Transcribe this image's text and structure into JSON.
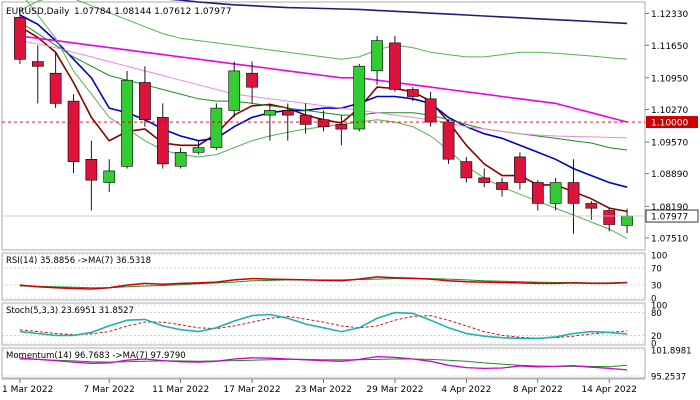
{
  "header": {
    "symbol": "EURUSD,Daily",
    "ohlc": "1.07784 1.08144 1.07612 1.07977"
  },
  "chart_data": {
    "type": "candlestick",
    "symbol": "EURUSD",
    "timeframe": "Daily",
    "price_axis": {
      "ticks": [
        "1.12330",
        "1.11650",
        "1.10950",
        "1.10270",
        "1.09570",
        "1.08890",
        "1.08190",
        "1.07510"
      ],
      "range": [
        1.0725,
        1.1258
      ]
    },
    "date_labels": [
      "1 Mar 2022",
      "7 Mar 2022",
      "11 Mar 2022",
      "17 Mar 2022",
      "23 Mar 2022",
      "29 Mar 2022",
      "4 Apr 2022",
      "8 Apr 2022",
      "14 Apr 2022"
    ],
    "label_indices": [
      0,
      5,
      9,
      13,
      17,
      21,
      25,
      29,
      33
    ],
    "candles": [
      {
        "o": 1.1225,
        "h": 1.124,
        "l": 1.1125,
        "c": 1.1135
      },
      {
        "o": 1.113,
        "h": 1.1165,
        "l": 1.104,
        "c": 1.112
      },
      {
        "o": 1.1105,
        "h": 1.115,
        "l": 1.103,
        "c": 1.104
      },
      {
        "o": 1.1045,
        "h": 1.106,
        "l": 1.089,
        "c": 1.0915
      },
      {
        "o": 1.092,
        "h": 1.096,
        "l": 1.081,
        "c": 1.0875
      },
      {
        "o": 1.087,
        "h": 1.092,
        "l": 1.085,
        "c": 1.0895
      },
      {
        "o": 1.0905,
        "h": 1.111,
        "l": 1.09,
        "c": 1.109
      },
      {
        "o": 1.1085,
        "h": 1.112,
        "l": 1.099,
        "c": 1.1005
      },
      {
        "o": 1.101,
        "h": 1.104,
        "l": 1.09,
        "c": 1.091
      },
      {
        "o": 1.0905,
        "h": 1.0945,
        "l": 1.09,
        "c": 1.0935
      },
      {
        "o": 1.0935,
        "h": 1.096,
        "l": 1.093,
        "c": 1.0945
      },
      {
        "o": 1.0945,
        "h": 1.104,
        "l": 1.094,
        "c": 1.103
      },
      {
        "o": 1.1025,
        "h": 1.113,
        "l": 1.101,
        "c": 1.111
      },
      {
        "o": 1.1105,
        "h": 1.113,
        "l": 1.104,
        "c": 1.1075
      },
      {
        "o": 1.1015,
        "h": 1.104,
        "l": 1.096,
        "c": 1.1025
      },
      {
        "o": 1.1025,
        "h": 1.104,
        "l": 1.096,
        "c": 1.1015
      },
      {
        "o": 1.1015,
        "h": 1.104,
        "l": 1.0975,
        "c": 1.0995
      },
      {
        "o": 1.1005,
        "h": 1.1025,
        "l": 1.098,
        "c": 1.099
      },
      {
        "o": 1.0995,
        "h": 1.1015,
        "l": 1.095,
        "c": 1.0985
      },
      {
        "o": 1.0985,
        "h": 1.1125,
        "l": 1.098,
        "c": 1.112
      },
      {
        "o": 1.111,
        "h": 1.1185,
        "l": 1.108,
        "c": 1.1175
      },
      {
        "o": 1.117,
        "h": 1.1185,
        "l": 1.1065,
        "c": 1.107
      },
      {
        "o": 1.107,
        "h": 1.1075,
        "l": 1.1045,
        "c": 1.1055
      },
      {
        "o": 1.105,
        "h": 1.1065,
        "l": 1.099,
        "c": 1.1
      },
      {
        "o": 1.1,
        "h": 1.1005,
        "l": 1.091,
        "c": 1.092
      },
      {
        "o": 1.0915,
        "h": 1.0925,
        "l": 1.087,
        "c": 1.088
      },
      {
        "o": 1.088,
        "h": 1.09,
        "l": 1.086,
        "c": 1.087
      },
      {
        "o": 1.087,
        "h": 1.088,
        "l": 1.084,
        "c": 1.0855
      },
      {
        "o": 1.0925,
        "h": 1.0935,
        "l": 1.0855,
        "c": 1.087
      },
      {
        "o": 1.087,
        "h": 1.0875,
        "l": 1.081,
        "c": 1.0825
      },
      {
        "o": 1.0825,
        "h": 1.088,
        "l": 1.081,
        "c": 1.087
      },
      {
        "o": 1.087,
        "h": 1.092,
        "l": 1.076,
        "c": 1.0825
      },
      {
        "o": 1.0825,
        "h": 1.083,
        "l": 1.079,
        "c": 1.0815
      },
      {
        "o": 1.081,
        "h": 1.0815,
        "l": 1.0765,
        "c": 1.078
      },
      {
        "o": 1.0778,
        "h": 1.0814,
        "l": 1.0761,
        "c": 1.0798
      }
    ],
    "overlays": [
      {
        "color": "#8b0000",
        "values": [
          1.1205,
          1.1182,
          1.115,
          1.1085,
          1.101,
          1.096,
          1.098,
          1.0985,
          1.0955,
          1.095,
          1.095,
          1.0975,
          1.1015,
          1.1035,
          1.1038,
          1.103,
          1.1015,
          1.1005,
          1.0998,
          1.103,
          1.1075,
          1.1072,
          1.1065,
          1.1045,
          1.1,
          1.095,
          1.091,
          1.0885,
          1.0885,
          1.0865,
          1.0865,
          1.085,
          1.0835,
          1.0815,
          1.0808
        ]
      },
      {
        "color": "#0000cc",
        "values": [
          1.123,
          1.121,
          1.1175,
          1.1135,
          1.1095,
          1.103,
          1.102,
          1.1005,
          1.0985,
          1.097,
          1.096,
          1.0965,
          1.099,
          1.101,
          1.102,
          1.1025,
          1.1025,
          1.103,
          1.103,
          1.104,
          1.1055,
          1.1055,
          1.105,
          1.104,
          1.101,
          1.099,
          1.0975,
          1.0965,
          1.095,
          1.0935,
          1.092,
          1.09,
          1.0885,
          1.087,
          1.086
        ]
      },
      {
        "color": "#228b22",
        "values": [
          1.1215,
          1.119,
          1.1165,
          1.114,
          1.112,
          1.11,
          1.109,
          1.108,
          1.107,
          1.106,
          1.105,
          1.1045,
          1.1045,
          1.104,
          1.1035,
          1.103,
          1.1025,
          1.102,
          1.1015,
          1.1015,
          1.102,
          1.102,
          1.102,
          1.1015,
          1.1005,
          1.0995,
          1.0985,
          1.098,
          1.0975,
          1.097,
          1.0965,
          1.096,
          1.0955,
          1.0945,
          1.094
        ]
      },
      {
        "color": "#ee00ee",
        "values": [
          1.1185,
          1.118,
          1.1175,
          1.117,
          1.1165,
          1.116,
          1.1155,
          1.115,
          1.1145,
          1.114,
          1.1135,
          1.113,
          1.1125,
          1.112,
          1.1115,
          1.111,
          1.1105,
          1.11,
          1.1095,
          1.1095,
          1.109,
          1.1085,
          1.108,
          1.1075,
          1.107,
          1.1065,
          1.106,
          1.1055,
          1.105,
          1.1045,
          1.104,
          1.103,
          1.102,
          1.101,
          1.1
        ]
      },
      {
        "color": "#e88be0",
        "values": [
          1.1175,
          1.1168,
          1.116,
          1.115,
          1.114,
          1.113,
          1.112,
          1.111,
          1.11,
          1.109,
          1.108,
          1.107,
          1.106,
          1.1055,
          1.105,
          1.1045,
          1.104,
          1.1035,
          1.103,
          1.1025,
          1.102,
          1.1015,
          1.101,
          1.1005,
          1.0998,
          1.099,
          1.0985,
          1.098,
          1.0975,
          1.0972,
          1.097,
          1.0969,
          1.0968,
          1.0967,
          1.0966
        ]
      },
      {
        "color": "#1e1e7a",
        "values": [
          1.129,
          1.1288,
          1.1285,
          1.1282,
          1.1278,
          1.1275,
          1.1272,
          1.1268,
          1.1265,
          1.1262,
          1.1258,
          1.1255,
          1.1252,
          1.125,
          1.1248,
          1.1246,
          1.1245,
          1.1244,
          1.1243,
          1.1242,
          1.124,
          1.1238,
          1.1236,
          1.1234,
          1.1232,
          1.123,
          1.1228,
          1.1226,
          1.1224,
          1.1222,
          1.122,
          1.1218,
          1.1216,
          1.1214,
          1.1212
        ]
      },
      {
        "color": "#58b158",
        "values": [
          1.128,
          1.123,
          1.118,
          1.111,
          1.106,
          1.101,
          1.0985,
          1.096,
          1.094,
          1.093,
          1.0925,
          1.093,
          1.0945,
          1.096,
          1.097,
          1.0978,
          1.0985,
          1.099,
          1.0995,
          1.1,
          1.1005,
          1.1,
          1.099,
          1.097,
          1.094,
          1.0905,
          1.088,
          1.086,
          1.0845,
          1.083,
          1.0815,
          1.08,
          1.0785,
          1.077,
          1.075
        ]
      },
      {
        "color": "#58b158",
        "values": [
          1.124,
          1.126,
          1.127,
          1.1265,
          1.125,
          1.1235,
          1.122,
          1.1205,
          1.119,
          1.118,
          1.1175,
          1.117,
          1.1165,
          1.116,
          1.1155,
          1.115,
          1.1145,
          1.114,
          1.1135,
          1.114,
          1.1155,
          1.1165,
          1.116,
          1.115,
          1.1145,
          1.114,
          1.114,
          1.1145,
          1.115,
          1.115,
          1.1148,
          1.1145,
          1.1142,
          1.1138,
          1.1135
        ]
      }
    ],
    "reference_line": {
      "value": 1.1,
      "label": "1.10000",
      "color": "#cc0000"
    },
    "current_price": {
      "value": 1.0798,
      "label": "1.07977"
    },
    "rsi": {
      "label": "RSI(14) 35.8856  ->MA(7) 36.5318",
      "levels": [
        "100",
        "70",
        "30",
        "0"
      ],
      "range": [
        0,
        100
      ],
      "values": [
        30,
        26,
        24,
        22,
        21,
        24,
        30,
        34,
        32,
        34,
        35,
        37,
        42,
        45,
        44,
        43,
        42,
        41,
        40,
        44,
        49,
        47,
        46,
        44,
        40,
        38,
        37,
        36,
        35,
        34,
        34,
        35,
        34,
        34,
        35.9
      ],
      "ma": [
        28,
        27,
        26,
        25,
        24,
        24,
        26,
        28,
        29,
        31,
        33,
        35,
        37,
        40,
        41,
        42,
        42,
        42,
        42,
        43,
        44,
        45,
        45,
        45,
        44,
        42,
        40,
        39,
        38,
        37,
        36,
        36,
        35,
        35,
        36.5
      ]
    },
    "stoch": {
      "label": "Stoch(5,3,3) 23.6951 31.8527",
      "levels": [
        "100",
        "80",
        "20",
        "0"
      ],
      "range": [
        0,
        100
      ],
      "k": [
        30,
        25,
        20,
        20,
        28,
        45,
        60,
        62,
        45,
        35,
        30,
        40,
        58,
        72,
        75,
        65,
        50,
        40,
        30,
        40,
        65,
        80,
        78,
        60,
        40,
        25,
        18,
        14,
        12,
        12,
        16,
        25,
        30,
        28,
        23.7
      ],
      "d": [
        35,
        30,
        25,
        22,
        24,
        30,
        45,
        55,
        55,
        48,
        40,
        38,
        45,
        55,
        65,
        70,
        63,
        55,
        45,
        40,
        45,
        60,
        70,
        72,
        60,
        45,
        30,
        20,
        15,
        13,
        14,
        18,
        24,
        28,
        31.9
      ]
    },
    "momentum": {
      "label": "Momentum(14) 96.7683  ->MA(7) 97.9790",
      "levels": [
        "101.8981",
        "95.2537"
      ],
      "range": [
        95.2537,
        101.8981
      ],
      "values": [
        99.8,
        99.5,
        99.2,
        98.8,
        98.5,
        98.6,
        99.3,
        99.6,
        99.2,
        98.9,
        98.8,
        99.0,
        99.6,
        99.9,
        99.8,
        99.6,
        99.4,
        99.2,
        99.0,
        99.5,
        100.2,
        100.0,
        99.6,
        99.0,
        98.0,
        97.4,
        97.2,
        97.3,
        97.8,
        97.6,
        97.7,
        97.9,
        97.5,
        97.2,
        96.8
      ],
      "ma": [
        99.6,
        99.5,
        99.3,
        99.1,
        98.9,
        98.8,
        98.9,
        99.0,
        99.1,
        99.1,
        99.0,
        99.1,
        99.2,
        99.3,
        99.4,
        99.5,
        99.5,
        99.4,
        99.4,
        99.4,
        99.5,
        99.6,
        99.6,
        99.5,
        99.3,
        99.0,
        98.6,
        98.3,
        98.0,
        97.8,
        97.7,
        97.7,
        97.7,
        97.6,
        98.0
      ]
    }
  }
}
